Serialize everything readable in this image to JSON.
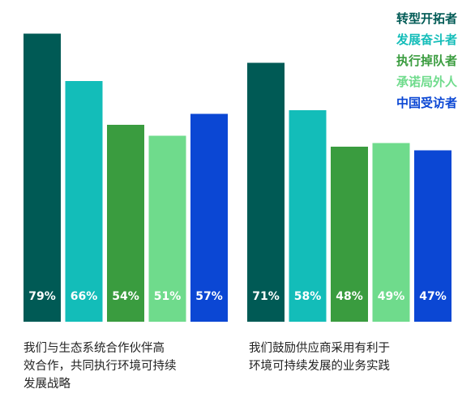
{
  "chart_data": {
    "type": "bar",
    "title": "",
    "xlabel": "",
    "ylabel": "",
    "ylim": [
      0,
      85
    ],
    "grid": false,
    "legend_position": "top-right",
    "series": [
      {
        "name": "转型开拓者",
        "color": "#005a55"
      },
      {
        "name": "发展奋斗者",
        "color": "#13bdb9"
      },
      {
        "name": "执行掉队者",
        "color": "#3a9c3f"
      },
      {
        "name": "承诺局外人",
        "color": "#6fdb8c"
      },
      {
        "name": "中国受访者",
        "color": "#0b47d4"
      }
    ],
    "groups": [
      {
        "caption": [
          "我们与生态系统合作伙伴高",
          "效合作，共同执行环境可持续",
          "发展战略"
        ],
        "values": [
          79,
          66,
          54,
          51,
          57
        ],
        "labels": [
          "79%",
          "66%",
          "54%",
          "51%",
          "57%"
        ]
      },
      {
        "caption": [
          "我们鼓励供应商采用有利于",
          "环境可持续发展的业务实践"
        ],
        "values": [
          71,
          58,
          48,
          49,
          47
        ],
        "labels": [
          "71%",
          "58%",
          "48%",
          "49%",
          "47%"
        ]
      }
    ]
  }
}
